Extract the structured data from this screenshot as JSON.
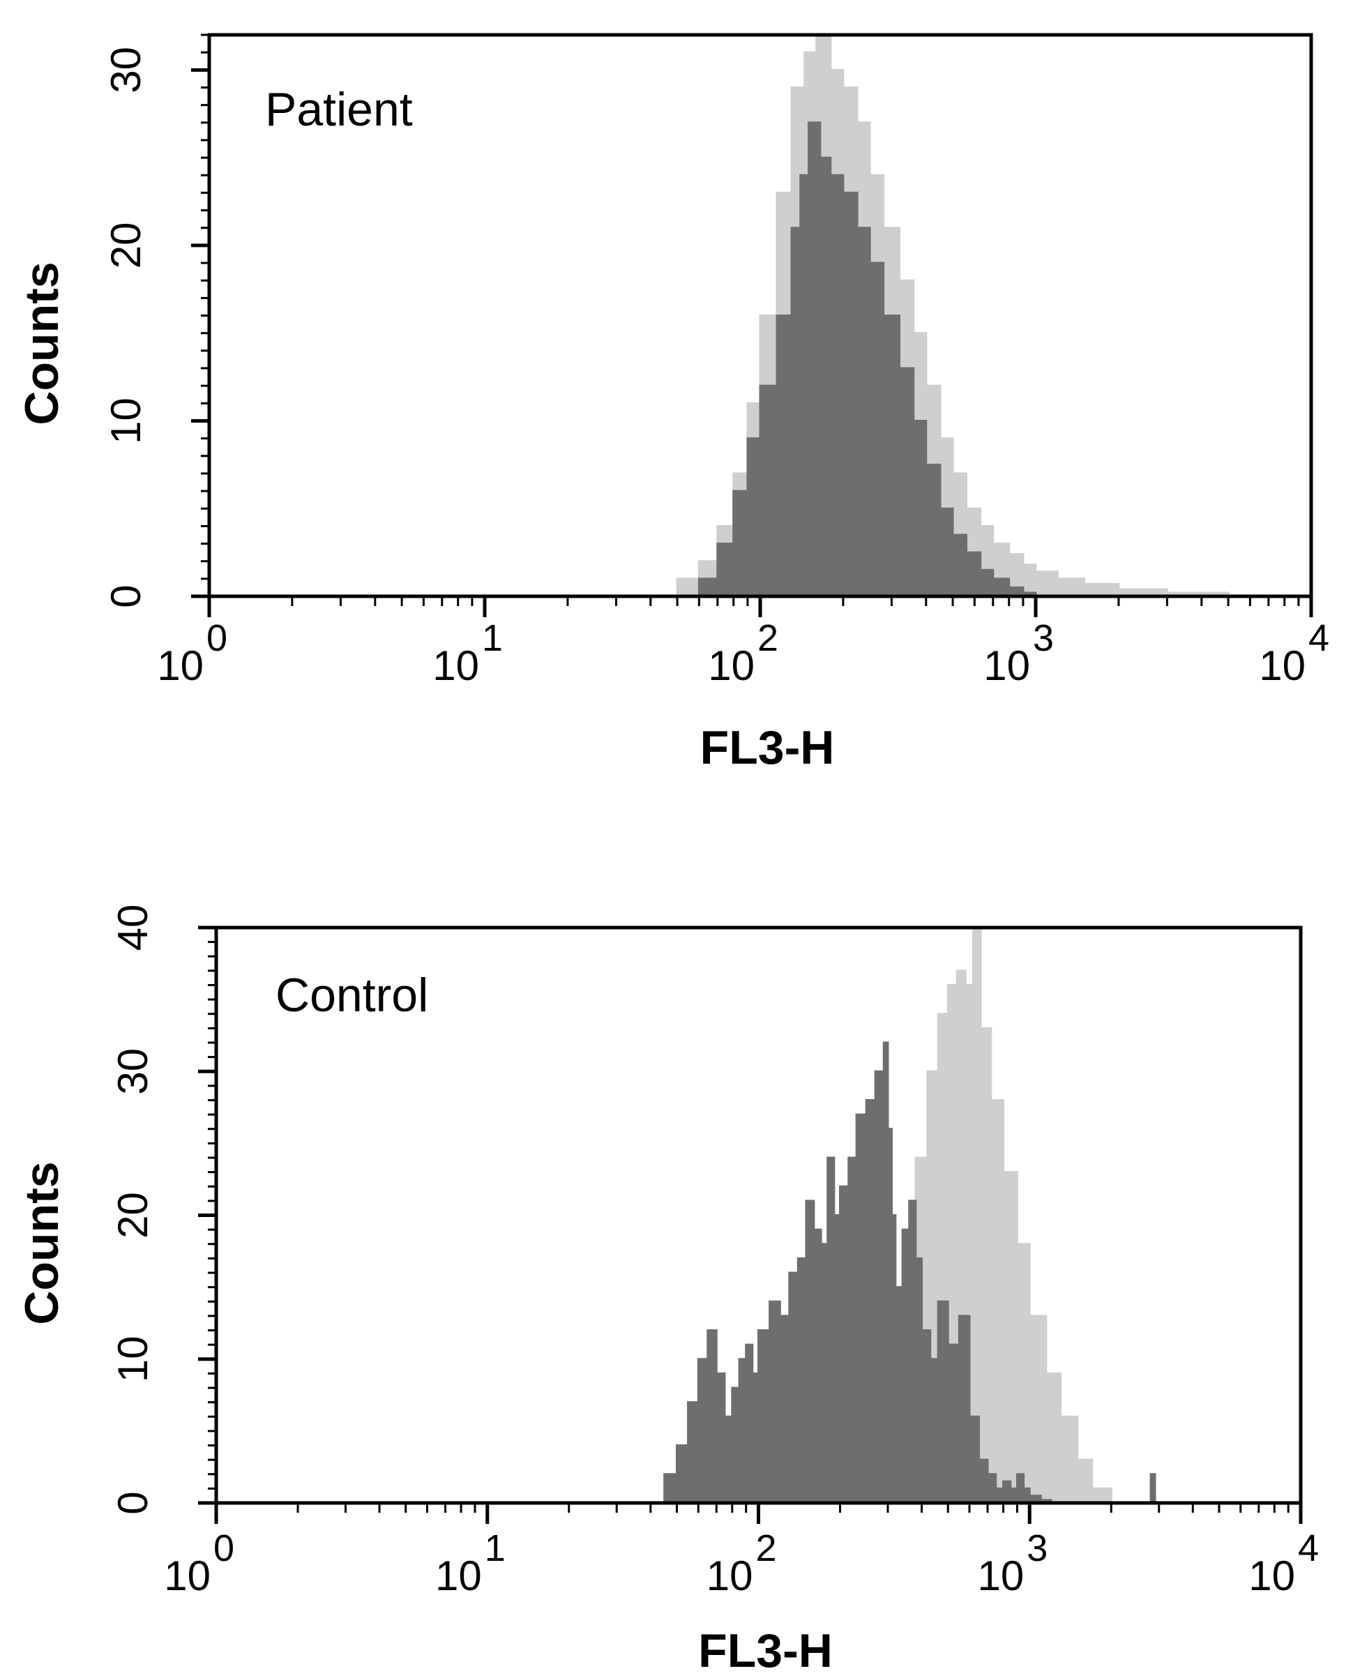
{
  "chart_data": [
    {
      "type": "area",
      "panel_label": "Patient",
      "xlabel": "FL3-H",
      "ylabel": "Counts",
      "x_scale": "log",
      "xlim": [
        1,
        10000
      ],
      "ylim": [
        0,
        32
      ],
      "y_ticks": [
        0,
        10,
        20,
        30
      ],
      "x_ticks": [
        {
          "base": "10",
          "exp": "0"
        },
        {
          "base": "10",
          "exp": "1"
        },
        {
          "base": "10",
          "exp": "2"
        },
        {
          "base": "10",
          "exp": "3"
        },
        {
          "base": "10",
          "exp": "4"
        }
      ],
      "series_colors": {
        "outline": "#cfcfcf",
        "filled": "#6e6e6e"
      },
      "series": [
        {
          "style": "outline",
          "x": [
            40,
            50,
            60,
            70,
            80,
            90,
            100,
            115,
            130,
            145,
            160,
            180,
            200,
            225,
            250,
            280,
            320,
            360,
            400,
            450,
            500,
            560,
            630,
            700,
            800,
            900,
            1000,
            1200,
            1500,
            2000,
            3000,
            5000
          ],
          "values": [
            0,
            1,
            2,
            4,
            7,
            11,
            16,
            23,
            29,
            31,
            32,
            30,
            29,
            27,
            24,
            21,
            18,
            15,
            12,
            9,
            7,
            5,
            4,
            3,
            2.4,
            1.8,
            1.4,
            1,
            0.7,
            0.4,
            0.2,
            0
          ]
        },
        {
          "style": "filled",
          "x": [
            50,
            60,
            70,
            80,
            90,
            100,
            115,
            130,
            140,
            150,
            165,
            180,
            200,
            225,
            250,
            280,
            320,
            360,
            400,
            450,
            500,
            560,
            630,
            700,
            800,
            900,
            1000
          ],
          "values": [
            0,
            1,
            3,
            6,
            9,
            12,
            16,
            21,
            24,
            27,
            25,
            24,
            23,
            21,
            19,
            16,
            13,
            10,
            7.5,
            5,
            3.5,
            2.5,
            1.5,
            1,
            0.5,
            0.2,
            0
          ]
        }
      ]
    },
    {
      "type": "area",
      "panel_label": "Control",
      "xlabel": "FL3-H",
      "ylabel": "Counts",
      "x_scale": "log",
      "xlim": [
        1,
        10000
      ],
      "ylim": [
        0,
        40
      ],
      "y_ticks": [
        0,
        10,
        20,
        30,
        40
      ],
      "x_ticks": [
        {
          "base": "10",
          "exp": "0"
        },
        {
          "base": "10",
          "exp": "1"
        },
        {
          "base": "10",
          "exp": "2"
        },
        {
          "base": "10",
          "exp": "3"
        },
        {
          "base": "10",
          "exp": "4"
        }
      ],
      "series_colors": {
        "outline": "#cfcfcf",
        "filled": "#6e6e6e"
      },
      "series": [
        {
          "style": "outline",
          "x": [
            120,
            140,
            160,
            180,
            200,
            230,
            260,
            300,
            340,
            380,
            420,
            460,
            500,
            540,
            580,
            620,
            660,
            720,
            800,
            900,
            1000,
            1150,
            1300,
            1500,
            1700,
            2000
          ],
          "values": [
            0,
            2,
            4,
            7,
            9,
            9.5,
            10,
            11,
            17,
            24,
            30,
            34,
            36,
            37,
            36,
            40,
            33,
            28,
            23,
            18,
            13,
            9,
            6,
            3,
            1,
            0
          ]
        },
        {
          "style": "filled",
          "x": [
            40,
            45,
            50,
            55,
            60,
            65,
            70,
            75,
            80,
            85,
            90,
            95,
            100,
            110,
            120,
            130,
            140,
            150,
            160,
            170,
            180,
            190,
            200,
            215,
            230,
            250,
            270,
            290,
            300,
            310,
            320,
            340,
            360,
            380,
            400,
            430,
            460,
            500,
            550,
            600,
            650,
            700,
            750,
            800,
            850,
            900,
            950,
            1000,
            1100,
            1200,
            2700,
            2800,
            2900
          ],
          "values": [
            0,
            2,
            4,
            7,
            10,
            12,
            9,
            6,
            8,
            10,
            11,
            9,
            12,
            14,
            13,
            16,
            17,
            21,
            19,
            18,
            24,
            20,
            22,
            24,
            27,
            28,
            30,
            32,
            26,
            20,
            15,
            19,
            21,
            17,
            12,
            10,
            14,
            11,
            13,
            6,
            3,
            2,
            1,
            1.5,
            1,
            2,
            1,
            0.5,
            0.2,
            0,
            0,
            2,
            0
          ]
        }
      ]
    }
  ]
}
